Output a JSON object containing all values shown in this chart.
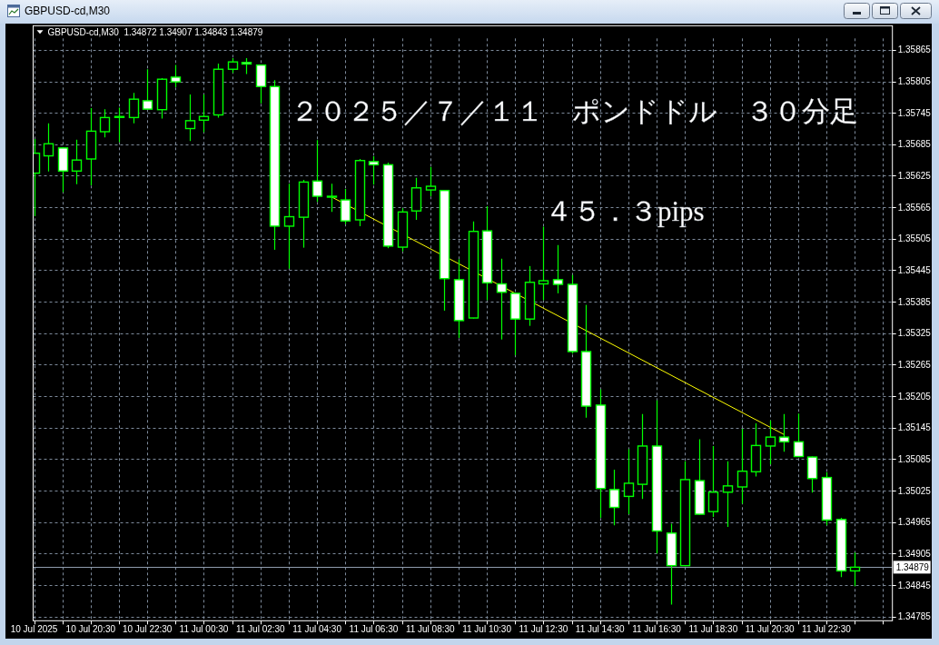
{
  "chart_data": {
    "type": "candlestick",
    "title": "GBPUSD-cd,M30",
    "subtitle": "GBPUSD-cd,M30  1.34872 1.34907 1.34843 1.34879",
    "annotations": [
      "２０２５／７／１１　ポンドドル　３０分足",
      "４５．３pips"
    ],
    "x": [
      "2025-07-10T18:30",
      "2025-07-10T19:00",
      "2025-07-10T19:30",
      "2025-07-10T20:00",
      "2025-07-10T20:30",
      "2025-07-10T21:00",
      "2025-07-10T21:30",
      "2025-07-10T22:00",
      "2025-07-10T22:30",
      "2025-07-10T23:00",
      "2025-07-10T23:30",
      "2025-07-11T00:00",
      "2025-07-11T00:30",
      "2025-07-11T01:00",
      "2025-07-11T01:30",
      "2025-07-11T02:00",
      "2025-07-11T02:30",
      "2025-07-11T03:00",
      "2025-07-11T03:30",
      "2025-07-11T04:00",
      "2025-07-11T04:30",
      "2025-07-11T05:00",
      "2025-07-11T05:30",
      "2025-07-11T06:00",
      "2025-07-11T06:30",
      "2025-07-11T07:00",
      "2025-07-11T07:30",
      "2025-07-11T08:00",
      "2025-07-11T08:30",
      "2025-07-11T09:00",
      "2025-07-11T09:30",
      "2025-07-11T10:00",
      "2025-07-11T10:30",
      "2025-07-11T11:00",
      "2025-07-11T11:30",
      "2025-07-11T12:00",
      "2025-07-11T12:30",
      "2025-07-11T13:00",
      "2025-07-11T13:30",
      "2025-07-11T14:00",
      "2025-07-11T14:30",
      "2025-07-11T15:00",
      "2025-07-11T15:30",
      "2025-07-11T16:00",
      "2025-07-11T16:30",
      "2025-07-11T17:00",
      "2025-07-11T17:30",
      "2025-07-11T18:00",
      "2025-07-11T18:30",
      "2025-07-11T19:00",
      "2025-07-11T19:30",
      "2025-07-11T20:00",
      "2025-07-11T20:30",
      "2025-07-11T21:00",
      "2025-07-11T21:30",
      "2025-07-11T22:00",
      "2025-07-11T22:30",
      "2025-07-11T23:00",
      "2025-07-11T23:30"
    ],
    "xlim": [
      "2025-07-10T18:28",
      "2025-07-12T00:50"
    ],
    "xticks": [
      {
        "value": "2025-07-10T18:30",
        "label": "10 Jul 2025"
      },
      {
        "value": "2025-07-10T19:30",
        "label": null
      },
      {
        "value": "2025-07-10T20:30",
        "label": "10 Jul 20:30"
      },
      {
        "value": "2025-07-10T21:30",
        "label": null
      },
      {
        "value": "2025-07-10T22:30",
        "label": "10 Jul 22:30"
      },
      {
        "value": "2025-07-10T23:30",
        "label": null
      },
      {
        "value": "2025-07-11T00:30",
        "label": "11 Jul 00:30"
      },
      {
        "value": "2025-07-11T01:30",
        "label": null
      },
      {
        "value": "2025-07-11T02:30",
        "label": "11 Jul 02:30"
      },
      {
        "value": "2025-07-11T03:30",
        "label": null
      },
      {
        "value": "2025-07-11T04:30",
        "label": "11 Jul 04:30"
      },
      {
        "value": "2025-07-11T05:30",
        "label": null
      },
      {
        "value": "2025-07-11T06:30",
        "label": "11 Jul 06:30"
      },
      {
        "value": "2025-07-11T07:30",
        "label": null
      },
      {
        "value": "2025-07-11T08:30",
        "label": "11 Jul 08:30"
      },
      {
        "value": "2025-07-11T09:30",
        "label": null
      },
      {
        "value": "2025-07-11T10:30",
        "label": "11 Jul 10:30"
      },
      {
        "value": "2025-07-11T11:30",
        "label": null
      },
      {
        "value": "2025-07-11T12:30",
        "label": "11 Jul 12:30"
      },
      {
        "value": "2025-07-11T13:30",
        "label": null
      },
      {
        "value": "2025-07-11T14:30",
        "label": "11 Jul 14:30"
      },
      {
        "value": "2025-07-11T15:30",
        "label": null
      },
      {
        "value": "2025-07-11T16:30",
        "label": "11 Jul 16:30"
      },
      {
        "value": "2025-07-11T17:30",
        "label": null
      },
      {
        "value": "2025-07-11T18:30",
        "label": "11 Jul 18:30"
      },
      {
        "value": "2025-07-11T19:30",
        "label": null
      },
      {
        "value": "2025-07-11T20:30",
        "label": "11 Jul 20:30"
      },
      {
        "value": "2025-07-11T21:30",
        "label": null
      },
      {
        "value": "2025-07-11T22:30",
        "label": "11 Jul 22:30"
      },
      {
        "value": "2025-07-11T23:30",
        "label": null
      },
      {
        "value": "2025-07-12T00:30",
        "label": null
      }
    ],
    "ylim": [
      1.34777,
      1.35911
    ],
    "yticks": [
      1.34785,
      1.34845,
      1.34905,
      1.34965,
      1.35025,
      1.35085,
      1.35145,
      1.35205,
      1.35265,
      1.35325,
      1.35385,
      1.35445,
      1.35505,
      1.35565,
      1.35625,
      1.35685,
      1.35745,
      1.35805,
      1.35865
    ],
    "grid": true,
    "ref_lines": [
      {
        "axis": "y",
        "value": 1.34879,
        "label": "1.34879",
        "color": "#8f9cae"
      }
    ],
    "series": [
      {
        "color": "#00ff00",
        "colors": [
          "#000000",
          "#000000",
          "#ffffff",
          "#000000",
          "#000000",
          "#000000",
          "#000000",
          "#000000",
          "#ffffff",
          "#000000",
          "#ffffff",
          "#000000",
          "#000000",
          "#000000",
          "#000000",
          "#ffffff",
          "#ffffff",
          "#ffffff",
          "#000000",
          "#000000",
          "#ffffff",
          "#ffffff",
          "#ffffff",
          "#000000",
          "#ffffff",
          "#ffffff",
          "#000000",
          "#000000",
          "#000000",
          "#ffffff",
          "#ffffff",
          "#000000",
          "#ffffff",
          "#ffffff",
          "#ffffff",
          "#000000",
          "#000000",
          "#ffffff",
          "#ffffff",
          "#ffffff",
          "#ffffff",
          "#ffffff",
          "#000000",
          "#000000",
          "#ffffff",
          "#ffffff",
          "#000000",
          "#ffffff",
          "#000000",
          "#000000",
          "#000000",
          "#000000",
          "#000000",
          "#ffffff",
          "#ffffff",
          "#ffffff",
          "#ffffff",
          "#ffffff",
          "#000000"
        ],
        "ohlc": [
          [
            1.3563,
            1.35695,
            1.35548,
            1.35668
          ],
          [
            1.35663,
            1.35725,
            1.35633,
            1.35686
          ],
          [
            1.35678,
            1.35679,
            1.35594,
            1.35634
          ],
          [
            1.35634,
            1.35694,
            1.35609,
            1.35655
          ],
          [
            1.35657,
            1.35754,
            1.35607,
            1.3571
          ],
          [
            1.35709,
            1.35752,
            1.35698,
            1.35736
          ],
          [
            1.35737,
            1.35755,
            1.35689,
            1.35738
          ],
          [
            1.35736,
            1.35783,
            1.35725,
            1.35771
          ],
          [
            1.35768,
            1.35828,
            1.35751,
            1.35752
          ],
          [
            1.35751,
            1.35811,
            1.35734,
            1.35809
          ],
          [
            1.35813,
            1.35836,
            1.35794,
            1.35804
          ],
          [
            1.35715,
            1.3578,
            1.35691,
            1.3573
          ],
          [
            1.35731,
            1.3578,
            1.35708,
            1.35738
          ],
          [
            1.35741,
            1.35839,
            1.35736,
            1.35828
          ],
          [
            1.35828,
            1.35849,
            1.35821,
            1.35842
          ],
          [
            1.35841,
            1.35849,
            1.35819,
            1.35838
          ],
          [
            1.35836,
            1.35837,
            1.35763,
            1.35795
          ],
          [
            1.35795,
            1.35807,
            1.35484,
            1.35529
          ],
          [
            1.35529,
            1.3561,
            1.35448,
            1.35547
          ],
          [
            1.35546,
            1.35617,
            1.35488,
            1.35613
          ],
          [
            1.35615,
            1.35693,
            1.35575,
            1.35586
          ],
          [
            1.35586,
            1.3561,
            1.35556,
            1.35585
          ],
          [
            1.35579,
            1.356,
            1.35533,
            1.35539
          ],
          [
            1.35541,
            1.35657,
            1.35529,
            1.35654
          ],
          [
            1.35652,
            1.35662,
            1.35608,
            1.35646
          ],
          [
            1.35646,
            1.3565,
            1.35487,
            1.35491
          ],
          [
            1.35489,
            1.35563,
            1.35481,
            1.35556
          ],
          [
            1.35558,
            1.35621,
            1.35541,
            1.35602
          ],
          [
            1.35598,
            1.35642,
            1.35586,
            1.35605
          ],
          [
            1.35597,
            1.35598,
            1.35368,
            1.35429
          ],
          [
            1.35427,
            1.35466,
            1.35316,
            1.35349
          ],
          [
            1.35354,
            1.35538,
            1.35353,
            1.35519
          ],
          [
            1.3552,
            1.35567,
            1.35388,
            1.35421
          ],
          [
            1.35419,
            1.35467,
            1.35313,
            1.35403
          ],
          [
            1.35401,
            1.35402,
            1.35283,
            1.35352
          ],
          [
            1.35352,
            1.35453,
            1.35339,
            1.35422
          ],
          [
            1.35419,
            1.35528,
            1.35388,
            1.35425
          ],
          [
            1.35427,
            1.35493,
            1.35401,
            1.35418
          ],
          [
            1.35418,
            1.35436,
            1.35286,
            1.3529
          ],
          [
            1.3529,
            1.35379,
            1.35164,
            1.35186
          ],
          [
            1.35188,
            1.35218,
            1.34973,
            1.35029
          ],
          [
            1.35027,
            1.35065,
            1.34959,
            1.34993
          ],
          [
            1.35014,
            1.35104,
            1.3498,
            1.35039
          ],
          [
            1.35037,
            1.35171,
            1.35009,
            1.3511
          ],
          [
            1.3511,
            1.35197,
            1.34905,
            1.34948
          ],
          [
            1.34944,
            1.34962,
            1.34808,
            1.34882
          ],
          [
            1.34882,
            1.35081,
            1.34881,
            1.35046
          ],
          [
            1.35044,
            1.35123,
            1.34979,
            1.3498
          ],
          [
            1.34985,
            1.3511,
            1.34975,
            1.35022
          ],
          [
            1.35022,
            1.35081,
            1.34956,
            1.35034
          ],
          [
            1.35032,
            1.35143,
            1.35,
            1.35062
          ],
          [
            1.35061,
            1.35153,
            1.35052,
            1.35111
          ],
          [
            1.3511,
            1.35159,
            1.35075,
            1.35127
          ],
          [
            1.35127,
            1.35171,
            1.35099,
            1.35118
          ],
          [
            1.35118,
            1.35172,
            1.35089,
            1.3509
          ],
          [
            1.35089,
            1.3509,
            1.35021,
            1.35048
          ],
          [
            1.3505,
            1.3506,
            1.34959,
            1.34969
          ],
          [
            1.3497,
            1.34973,
            1.3486,
            1.34872
          ],
          [
            1.34872,
            1.34907,
            1.34843,
            1.34879
          ]
        ]
      },
      {
        "type": "line",
        "x": [
          "2025-07-11T05:00",
          "2025-07-11T21:00"
        ],
        "values": [
          1.35585,
          1.35132
        ],
        "color": "#ffff00"
      }
    ]
  }
}
